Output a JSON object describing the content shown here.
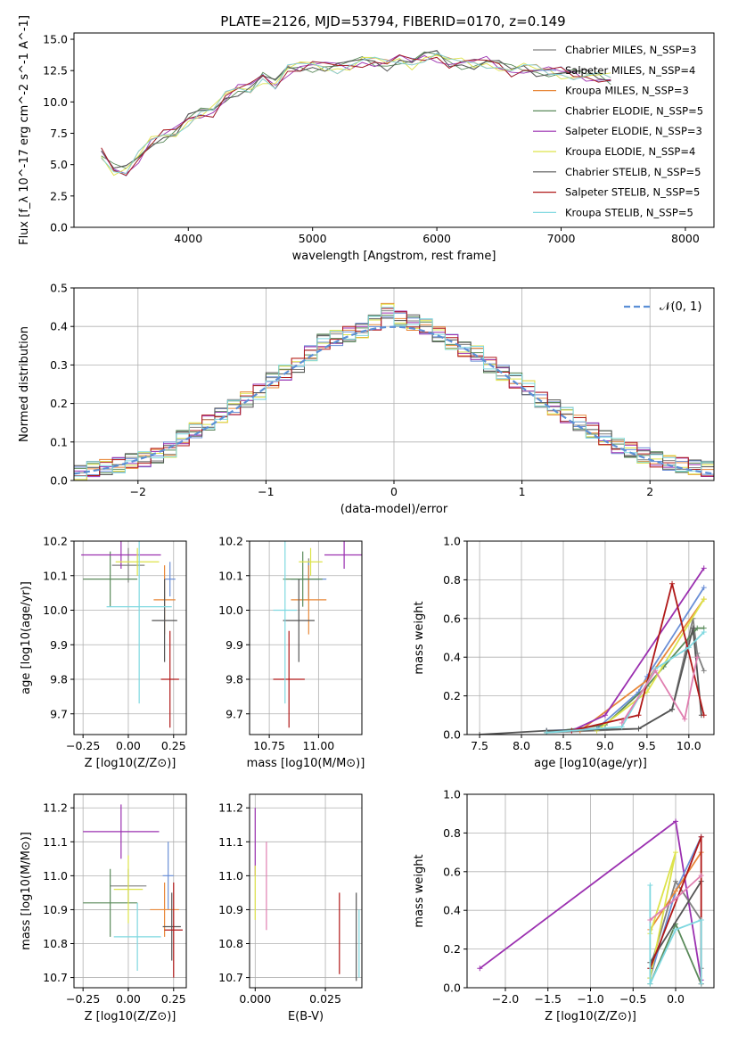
{
  "figure": {
    "title": "PLATE=2126, MJD=53794, FIBERID=0170, z=0.149"
  },
  "model_legend": [
    {
      "label": "Chabrier MILES, N_SSP=3",
      "color": "#808080"
    },
    {
      "label": "Salpeter MILES, N_SSP=4",
      "color": "#6b8fd6"
    },
    {
      "label": "Kroupa MILES, N_SSP=3",
      "color": "#e8883a"
    },
    {
      "label": "Chabrier ELODIE, N_SSP=5",
      "color": "#5a8a5a"
    },
    {
      "label": "Salpeter ELODIE, N_SSP=3",
      "color": "#9b30b0"
    },
    {
      "label": "Kroupa ELODIE, N_SSP=4",
      "color": "#dde34a"
    },
    {
      "label": "Chabrier STELIB, N_SSP=5",
      "color": "#555555"
    },
    {
      "label": "Salpeter STELIB, N_SSP=5",
      "color": "#b01818"
    },
    {
      "label": "Kroupa STELIB, N_SSP=5",
      "color": "#7fd8e0"
    }
  ],
  "chart_data": [
    {
      "id": "spectrum",
      "type": "line",
      "title": "PLATE=2126, MJD=53794, FIBERID=0170, z=0.149",
      "xlabel": "wavelength [Angstrom, rest frame]",
      "ylabel": "Flux [f_λ 10^-17 erg cm^-2 s^-1 A^-1]",
      "xlim": [
        3080,
        8230
      ],
      "ylim": [
        0,
        15.5
      ],
      "xticks": [
        4000,
        5000,
        6000,
        7000,
        8000
      ],
      "yticks": [
        0.0,
        2.5,
        5.0,
        7.5,
        10.0,
        12.5,
        15.0
      ],
      "grid": false,
      "legend": "top-right",
      "x": [
        3300,
        3400,
        3500,
        3600,
        3700,
        3800,
        3900,
        4000,
        4100,
        4200,
        4300,
        4400,
        4500,
        4600,
        4700,
        4800,
        4900,
        5000,
        5100,
        5200,
        5300,
        5400,
        5500,
        5600,
        5700,
        5800,
        5900,
        6000,
        6100,
        6200,
        6300,
        6400,
        6500,
        6600,
        6700,
        6800,
        6900,
        7000,
        7100,
        7200,
        7300,
        7400
      ],
      "y": [
        5.9,
        4.6,
        4.5,
        5.6,
        6.8,
        7.3,
        7.6,
        8.6,
        9.1,
        9.3,
        10.4,
        11.0,
        11.1,
        12.0,
        11.4,
        12.6,
        12.8,
        12.9,
        12.8,
        12.8,
        12.9,
        13.3,
        13.2,
        13.0,
        13.4,
        13.1,
        13.6,
        13.7,
        13.1,
        13.1,
        13.0,
        13.2,
        12.9,
        12.5,
        12.7,
        12.5,
        12.4,
        12.3,
        12.2,
        12.1,
        12.0,
        11.8
      ]
    },
    {
      "id": "residuals",
      "type": "bar",
      "xlabel": "(data-model)/error",
      "ylabel": "Normed distribution",
      "xlim": [
        -2.5,
        2.5
      ],
      "ylim": [
        0,
        0.5
      ],
      "xticks": [
        -2,
        -1,
        0,
        1,
        2
      ],
      "yticks": [
        0.0,
        0.1,
        0.2,
        0.3,
        0.4,
        0.5
      ],
      "grid": true,
      "legend": "top-right",
      "reference_curve": "N(0,1)",
      "bin_width": 0.1,
      "bin_centers": [
        -2.45,
        -2.35,
        -2.25,
        -2.15,
        -2.05,
        -1.95,
        -1.85,
        -1.75,
        -1.65,
        -1.55,
        -1.45,
        -1.35,
        -1.25,
        -1.15,
        -1.05,
        -0.95,
        -0.85,
        -0.75,
        -0.65,
        -0.55,
        -0.45,
        -0.35,
        -0.25,
        -0.15,
        -0.05,
        0.05,
        0.15,
        0.25,
        0.35,
        0.45,
        0.55,
        0.65,
        0.75,
        0.85,
        0.95,
        1.05,
        1.15,
        1.25,
        1.35,
        1.45,
        1.55,
        1.65,
        1.75,
        1.85,
        1.95,
        2.05,
        2.15,
        2.25,
        2.35,
        2.45
      ],
      "values": [
        0.02,
        0.03,
        0.035,
        0.04,
        0.05,
        0.055,
        0.065,
        0.08,
        0.11,
        0.13,
        0.15,
        0.17,
        0.19,
        0.21,
        0.23,
        0.26,
        0.28,
        0.3,
        0.33,
        0.36,
        0.37,
        0.38,
        0.39,
        0.41,
        0.44,
        0.42,
        0.41,
        0.4,
        0.38,
        0.36,
        0.34,
        0.33,
        0.3,
        0.28,
        0.26,
        0.24,
        0.21,
        0.19,
        0.17,
        0.15,
        0.13,
        0.11,
        0.09,
        0.08,
        0.065,
        0.055,
        0.045,
        0.04,
        0.035,
        0.03
      ]
    },
    {
      "id": "age-vs-Z",
      "type": "scatter",
      "xlabel": "Z [log10(Z/Z⊙)]",
      "ylabel": "age [log10(age/yr)]",
      "xlim": [
        -0.3,
        0.32
      ],
      "ylim": [
        9.64,
        10.2
      ],
      "xticks": [
        -0.25,
        0.0,
        0.25
      ],
      "yticks": [
        9.7,
        9.8,
        9.9,
        10.0,
        10.1,
        10.2
      ],
      "grid": true,
      "points": [
        {
          "x": 0.0,
          "y": 10.13,
          "xerr": 0.09,
          "yerr": 0.05,
          "color": "#808080"
        },
        {
          "x": 0.23,
          "y": 10.09,
          "xerr": 0.03,
          "yerr": 0.05,
          "color": "#6b8fd6"
        },
        {
          "x": 0.2,
          "y": 10.03,
          "xerr": 0.06,
          "yerr": 0.1,
          "color": "#e8883a"
        },
        {
          "x": -0.1,
          "y": 10.09,
          "xerr": 0.15,
          "yerr": 0.08,
          "color": "#5a8a5a"
        },
        {
          "x": -0.04,
          "y": 10.16,
          "xerr": 0.22,
          "yerr": 0.04,
          "color": "#9b30b0"
        },
        {
          "x": 0.05,
          "y": 10.14,
          "xerr": 0.12,
          "yerr": 0.04,
          "color": "#dde34a"
        },
        {
          "x": 0.2,
          "y": 9.97,
          "xerr": 0.07,
          "yerr": 0.12,
          "color": "#555555"
        },
        {
          "x": 0.23,
          "y": 9.8,
          "xerr": 0.05,
          "yerr": 0.14,
          "color": "#b01818"
        },
        {
          "x": 0.06,
          "y": 10.01,
          "xerr": 0.18,
          "yerr": 0.28,
          "color": "#7fd8e0"
        }
      ]
    },
    {
      "id": "age-vs-mass",
      "type": "scatter",
      "xlabel": "mass [log10(M/M⊙)]",
      "ylabel": "",
      "xlim": [
        10.65,
        11.22
      ],
      "ylim": [
        9.64,
        10.2
      ],
      "xticks": [
        10.75,
        11.0
      ],
      "yticks": [
        9.7,
        9.8,
        9.9,
        10.0,
        10.1,
        10.2
      ],
      "grid": true,
      "points": [
        {
          "x": 10.95,
          "y": 10.09,
          "xerr": 0.05,
          "yerr": 0.06,
          "color": "#808080"
        },
        {
          "x": 10.95,
          "y": 10.09,
          "xerr": 0.09,
          "yerr": 0.05,
          "color": "#6b8fd6"
        },
        {
          "x": 10.95,
          "y": 10.03,
          "xerr": 0.09,
          "yerr": 0.1,
          "color": "#e8883a"
        },
        {
          "x": 10.92,
          "y": 10.09,
          "xerr": 0.1,
          "yerr": 0.08,
          "color": "#5a8a5a"
        },
        {
          "x": 11.13,
          "y": 10.16,
          "xerr": 0.1,
          "yerr": 0.04,
          "color": "#9b30b0"
        },
        {
          "x": 10.96,
          "y": 10.14,
          "xerr": 0.06,
          "yerr": 0.04,
          "color": "#dde34a"
        },
        {
          "x": 10.9,
          "y": 9.97,
          "xerr": 0.08,
          "yerr": 0.12,
          "color": "#555555"
        },
        {
          "x": 10.85,
          "y": 9.8,
          "xerr": 0.08,
          "yerr": 0.14,
          "color": "#b01818"
        },
        {
          "x": 10.83,
          "y": 10.0,
          "xerr": 0.06,
          "yerr": 0.27,
          "color": "#7fd8e0"
        }
      ]
    },
    {
      "id": "mass-weight-vs-age",
      "type": "line",
      "xlabel": "age [log10(age/yr)]",
      "ylabel": "mass weight",
      "xlim": [
        7.35,
        10.3
      ],
      "ylim": [
        0,
        1
      ],
      "xticks": [
        7.5,
        8.0,
        8.5,
        9.0,
        9.5,
        10.0
      ],
      "yticks": [
        0.0,
        0.2,
        0.4,
        0.6,
        0.8,
        1.0
      ],
      "grid": true,
      "series": [
        {
          "color": "#808080",
          "x": [
            8.3,
            9.4,
            9.8,
            10.05,
            10.1,
            10.18
          ],
          "y": [
            0.01,
            0.03,
            0.13,
            0.6,
            0.42,
            0.33
          ]
        },
        {
          "color": "#6b8fd6",
          "x": [
            8.3,
            8.9,
            9.4,
            9.5,
            10.18
          ],
          "y": [
            0.02,
            0.03,
            0.22,
            0.3,
            0.76
          ]
        },
        {
          "color": "#e8883a",
          "x": [
            8.7,
            9.5,
            10.18
          ],
          "y": [
            0.02,
            0.28,
            0.7
          ]
        },
        {
          "color": "#5a8a5a",
          "x": [
            8.3,
            9.0,
            9.5,
            9.7,
            10.1,
            10.18
          ],
          "y": [
            0.01,
            0.05,
            0.25,
            0.35,
            0.55,
            0.55
          ]
        },
        {
          "color": "#9b30b0",
          "x": [
            8.6,
            9.0,
            10.18
          ],
          "y": [
            0.02,
            0.1,
            0.86
          ]
        },
        {
          "color": "#dde34a",
          "x": [
            8.9,
            9.5,
            10.18
          ],
          "y": [
            0.02,
            0.22,
            0.7
          ]
        },
        {
          "color": "#555555",
          "x": [
            7.5,
            8.3,
            9.4,
            9.8,
            10.05,
            10.15
          ],
          "y": [
            0.0,
            0.02,
            0.03,
            0.13,
            0.55,
            0.1
          ]
        },
        {
          "color": "#b01818",
          "x": [
            8.6,
            9.4,
            9.8,
            10.18
          ],
          "y": [
            0.02,
            0.1,
            0.78,
            0.1
          ]
        },
        {
          "color": "#7fd8e0",
          "x": [
            8.3,
            9.2,
            9.6,
            10.0,
            10.18
          ],
          "y": [
            0.01,
            0.04,
            0.34,
            0.45,
            0.53
          ]
        },
        {
          "color": "#e07fb0",
          "x": [
            9.2,
            9.6,
            9.95,
            10.1
          ],
          "y": [
            0.06,
            0.33,
            0.08,
            0.4
          ]
        }
      ]
    },
    {
      "id": "mass-vs-Z",
      "type": "scatter",
      "xlabel": "Z [log10(Z/Z⊙)]",
      "ylabel": "mass [log10(M/M⊙)]",
      "xlim": [
        -0.3,
        0.32
      ],
      "ylim": [
        10.67,
        11.24
      ],
      "xticks": [
        -0.25,
        0.0,
        0.25
      ],
      "yticks": [
        10.7,
        10.8,
        10.9,
        11.0,
        11.1,
        11.2
      ],
      "grid": true,
      "points": [
        {
          "x": 0.0,
          "y": 10.97,
          "xerr": 0.1,
          "yerr": 0.05,
          "color": "#808080"
        },
        {
          "x": 0.22,
          "y": 11.0,
          "xerr": 0.03,
          "yerr": 0.1,
          "color": "#6b8fd6"
        },
        {
          "x": 0.2,
          "y": 10.9,
          "xerr": 0.08,
          "yerr": 0.08,
          "color": "#e8883a"
        },
        {
          "x": -0.1,
          "y": 10.92,
          "xerr": 0.15,
          "yerr": 0.1,
          "color": "#5a8a5a"
        },
        {
          "x": -0.04,
          "y": 11.13,
          "xerr": 0.21,
          "yerr": 0.08,
          "color": "#9b30b0"
        },
        {
          "x": 0.0,
          "y": 10.96,
          "xerr": 0.08,
          "yerr": 0.1,
          "color": "#dde34a"
        },
        {
          "x": 0.24,
          "y": 10.85,
          "xerr": 0.05,
          "yerr": 0.1,
          "color": "#555555"
        },
        {
          "x": 0.25,
          "y": 10.84,
          "xerr": 0.05,
          "yerr": 0.14,
          "color": "#b01818"
        },
        {
          "x": 0.05,
          "y": 10.82,
          "xerr": 0.13,
          "yerr": 0.1,
          "color": "#7fd8e0"
        }
      ]
    },
    {
      "id": "mass-vs-EBV",
      "type": "scatter",
      "xlabel": "E(B-V)",
      "ylabel": "",
      "xlim": [
        -0.002,
        0.038
      ],
      "ylim": [
        10.67,
        11.24
      ],
      "xticks": [
        0.0,
        0.025
      ],
      "yticks": [
        10.7,
        10.8,
        10.9,
        11.0,
        11.1,
        11.2
      ],
      "grid": true,
      "points": [
        {
          "x": 0.0,
          "y": 11.1,
          "yerr": 0.1,
          "color": "#9b30b0"
        },
        {
          "x": 0.0,
          "y": 10.95,
          "yerr": 0.08,
          "color": "#dde34a"
        },
        {
          "x": 0.004,
          "y": 10.97,
          "yerr": 0.13,
          "color": "#e07fb0"
        },
        {
          "x": 0.03,
          "y": 10.83,
          "yerr": 0.12,
          "color": "#b01818"
        },
        {
          "x": 0.036,
          "y": 10.82,
          "yerr": 0.13,
          "color": "#555555"
        },
        {
          "x": 0.037,
          "y": 10.8,
          "yerr": 0.1,
          "color": "#7fd8e0"
        }
      ]
    },
    {
      "id": "mass-weight-vs-Z",
      "type": "line",
      "xlabel": "Z [log10(Z/Z⊙)]",
      "ylabel": "mass weight",
      "xlim": [
        -2.45,
        0.45
      ],
      "ylim": [
        0,
        1
      ],
      "xticks": [
        -2.0,
        -1.5,
        -1.0,
        -0.5,
        0.0
      ],
      "yticks": [
        0.0,
        0.2,
        0.4,
        0.6,
        0.8,
        1.0
      ],
      "grid": true,
      "series": [
        {
          "color": "#9b30b0",
          "x": [
            -2.3,
            0.0,
            0.3
          ],
          "y": [
            0.1,
            0.86,
            0.04
          ]
        },
        {
          "color": "#808080",
          "x": [
            -0.3,
            0.0,
            0.3,
            0.3
          ],
          "y": [
            0.1,
            0.55,
            0.35,
            0.1
          ]
        },
        {
          "color": "#6b8fd6",
          "x": [
            -0.3,
            0.0,
            0.3
          ],
          "y": [
            0.05,
            0.5,
            0.78
          ]
        },
        {
          "color": "#e8883a",
          "x": [
            -0.3,
            0.0,
            0.3
          ],
          "y": [
            0.3,
            0.5,
            0.7
          ]
        },
        {
          "color": "#5a8a5a",
          "x": [
            -0.3,
            0.0,
            0.3
          ],
          "y": [
            0.02,
            0.33,
            0.02
          ]
        },
        {
          "color": "#dde34a",
          "x": [
            -0.3,
            0.0,
            -0.3
          ],
          "y": [
            0.28,
            0.7,
            0.05
          ]
        },
        {
          "color": "#555555",
          "x": [
            -0.3,
            0.3
          ],
          "y": [
            0.13,
            0.55
          ]
        },
        {
          "color": "#b01818",
          "x": [
            -0.3,
            0.3,
            0.3
          ],
          "y": [
            0.1,
            0.78,
            0.02
          ]
        },
        {
          "color": "#7fd8e0",
          "x": [
            -0.3,
            -0.3,
            0.0,
            0.3,
            0.3
          ],
          "y": [
            0.53,
            0.02,
            0.3,
            0.35,
            0.02
          ]
        },
        {
          "color": "#e07fb0",
          "x": [
            -0.3,
            0.0,
            0.3
          ],
          "y": [
            0.35,
            0.46,
            0.58
          ]
        }
      ]
    }
  ]
}
